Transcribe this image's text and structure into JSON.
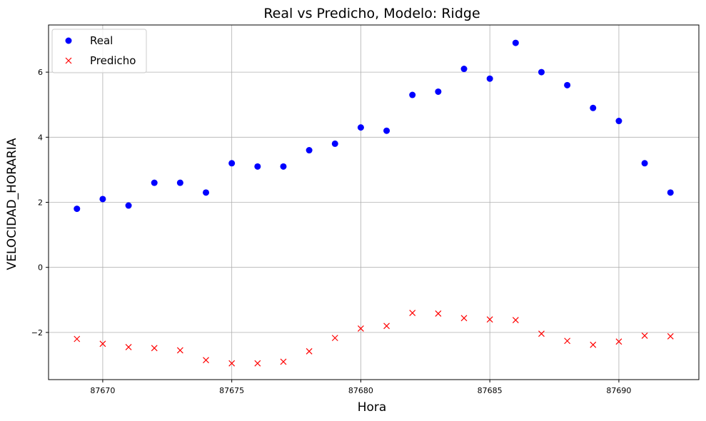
{
  "chart_data": {
    "type": "scatter",
    "title": "Real vs Predicho, Modelo: Ridge",
    "xlabel": "Hora",
    "ylabel": "VELOCIDAD_HORARIA",
    "xlim": [
      87667.9,
      87693.1
    ],
    "ylim": [
      -3.45,
      7.45
    ],
    "xticks": [
      87670,
      87675,
      87680,
      87685,
      87690
    ],
    "yticks": [
      -2,
      0,
      2,
      4,
      6
    ],
    "grid": true,
    "legend_position": "upper-left",
    "series": [
      {
        "name": "Real",
        "marker": "circle",
        "color": "#0000ff",
        "x": [
          87669,
          87670,
          87671,
          87672,
          87673,
          87674,
          87675,
          87676,
          87677,
          87678,
          87679,
          87680,
          87681,
          87682,
          87683,
          87684,
          87685,
          87686,
          87687,
          87688,
          87689,
          87690,
          87691,
          87692
        ],
        "y": [
          1.8,
          2.1,
          1.9,
          2.6,
          2.6,
          2.3,
          3.2,
          3.1,
          3.1,
          3.6,
          3.8,
          4.3,
          4.2,
          5.3,
          5.4,
          6.1,
          5.8,
          6.9,
          6.0,
          5.6,
          4.9,
          4.5,
          3.2,
          2.3
        ]
      },
      {
        "name": "Predicho",
        "marker": "x",
        "color": "#ff0000",
        "x": [
          87669,
          87670,
          87671,
          87672,
          87673,
          87674,
          87675,
          87676,
          87677,
          87678,
          87679,
          87680,
          87681,
          87682,
          87683,
          87684,
          87685,
          87686,
          87687,
          87688,
          87689,
          87690,
          87691,
          87692
        ],
        "y": [
          -2.2,
          -2.35,
          -2.45,
          -2.48,
          -2.55,
          -2.85,
          -2.95,
          -2.95,
          -2.9,
          -2.58,
          -2.17,
          -1.88,
          -1.8,
          -1.4,
          -1.42,
          -1.56,
          -1.6,
          -1.62,
          -2.04,
          -2.26,
          -2.38,
          -2.28,
          -2.1,
          -2.12
        ]
      }
    ]
  }
}
